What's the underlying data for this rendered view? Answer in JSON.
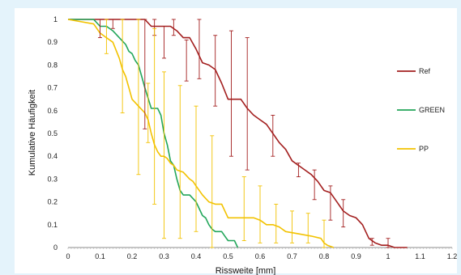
{
  "colors": {
    "background": "#e4f3fb",
    "plot_area": "#ffffff",
    "axis": "#8c8c8c",
    "ref": "#a31f1f",
    "green": "#22a65a",
    "pp": "#f2c200"
  },
  "chart_data": {
    "type": "line",
    "title": "",
    "xlabel": "Rissweite [mm]",
    "ylabel": "Kumulative Häufigkeit",
    "xlim": [
      0,
      1.2
    ],
    "ylim": [
      0,
      1
    ],
    "x_ticks": [
      "0",
      "0.1",
      "0.2",
      "0.3",
      "0.4",
      "0.5",
      "0.6",
      "0.7",
      "0.8",
      "0.9",
      "1",
      "1.1",
      "1.2"
    ],
    "y_ticks": [
      "0",
      "0.1",
      "0.2",
      "0.3",
      "0.4",
      "0.5",
      "0.6",
      "0.7",
      "0.8",
      "0.9",
      "1"
    ],
    "grid": false,
    "legend_position": "right",
    "series": [
      {
        "name": "Ref",
        "color": "#a31f1f",
        "x": [
          0,
          0.08,
          0.1,
          0.12,
          0.14,
          0.16,
          0.18,
          0.2,
          0.22,
          0.24,
          0.26,
          0.28,
          0.3,
          0.32,
          0.34,
          0.36,
          0.38,
          0.4,
          0.42,
          0.44,
          0.46,
          0.48,
          0.5,
          0.52,
          0.54,
          0.56,
          0.58,
          0.6,
          0.62,
          0.64,
          0.66,
          0.68,
          0.7,
          0.72,
          0.74,
          0.76,
          0.78,
          0.8,
          0.82,
          0.84,
          0.86,
          0.88,
          0.9,
          0.92,
          0.94,
          0.96,
          0.98,
          1.0,
          1.02,
          1.06
        ],
        "y": [
          1,
          1,
          1,
          1,
          1,
          1,
          1,
          1,
          1,
          1,
          0.97,
          0.97,
          0.97,
          0.97,
          0.95,
          0.92,
          0.92,
          0.87,
          0.81,
          0.8,
          0.78,
          0.72,
          0.65,
          0.65,
          0.65,
          0.61,
          0.58,
          0.56,
          0.54,
          0.5,
          0.46,
          0.43,
          0.38,
          0.36,
          0.34,
          0.32,
          0.29,
          0.25,
          0.24,
          0.2,
          0.16,
          0.14,
          0.13,
          0.1,
          0.04,
          0.02,
          0.01,
          0.01,
          0,
          0
        ],
        "error_bars": [
          {
            "x": 0.1,
            "lo": 0.92,
            "hi": 1
          },
          {
            "x": 0.14,
            "lo": 0.96,
            "hi": 1
          },
          {
            "x": 0.24,
            "lo": 0.52,
            "hi": 1
          },
          {
            "x": 0.27,
            "lo": 0.93,
            "hi": 1
          },
          {
            "x": 0.3,
            "lo": 0.83,
            "hi": 0.97
          },
          {
            "x": 0.33,
            "lo": 0.93,
            "hi": 1
          },
          {
            "x": 0.37,
            "lo": 0.73,
            "hi": 0.91
          },
          {
            "x": 0.41,
            "lo": 0.74,
            "hi": 1
          },
          {
            "x": 0.46,
            "lo": 0.62,
            "hi": 0.93
          },
          {
            "x": 0.51,
            "lo": 0.4,
            "hi": 0.95
          },
          {
            "x": 0.56,
            "lo": 0.34,
            "hi": 0.92
          },
          {
            "x": 0.64,
            "lo": 0.4,
            "hi": 0.58
          },
          {
            "x": 0.72,
            "lo": 0.31,
            "hi": 0.37
          },
          {
            "x": 0.77,
            "lo": 0.21,
            "hi": 0.34
          },
          {
            "x": 0.82,
            "lo": 0.12,
            "hi": 0.27
          },
          {
            "x": 0.86,
            "lo": 0.09,
            "hi": 0.21
          },
          {
            "x": 0.95,
            "lo": 0.01,
            "hi": 0.04
          },
          {
            "x": 1.0,
            "lo": 0,
            "hi": 0.04
          }
        ]
      },
      {
        "name": "GREEN",
        "color": "#22a65a",
        "x": [
          0,
          0.08,
          0.1,
          0.12,
          0.14,
          0.16,
          0.18,
          0.19,
          0.2,
          0.21,
          0.22,
          0.23,
          0.24,
          0.26,
          0.28,
          0.29,
          0.3,
          0.31,
          0.32,
          0.33,
          0.34,
          0.35,
          0.36,
          0.38,
          0.4,
          0.41,
          0.42,
          0.43,
          0.44,
          0.45,
          0.46,
          0.48,
          0.49,
          0.5,
          0.51,
          0.52,
          0.53
        ],
        "y": [
          1,
          1,
          0.97,
          0.97,
          0.95,
          0.92,
          0.89,
          0.86,
          0.85,
          0.82,
          0.8,
          0.75,
          0.7,
          0.61,
          0.61,
          0.58,
          0.5,
          0.45,
          0.38,
          0.36,
          0.3,
          0.25,
          0.23,
          0.23,
          0.2,
          0.17,
          0.14,
          0.13,
          0.1,
          0.08,
          0.07,
          0.07,
          0.05,
          0.03,
          0.03,
          0.03,
          0
        ]
      },
      {
        "name": "PP",
        "color": "#f2c200",
        "x": [
          0,
          0.08,
          0.1,
          0.12,
          0.14,
          0.16,
          0.17,
          0.18,
          0.19,
          0.2,
          0.22,
          0.24,
          0.25,
          0.26,
          0.27,
          0.28,
          0.29,
          0.3,
          0.31,
          0.32,
          0.33,
          0.34,
          0.36,
          0.38,
          0.39,
          0.4,
          0.42,
          0.44,
          0.46,
          0.48,
          0.5,
          0.54,
          0.58,
          0.6,
          0.62,
          0.64,
          0.66,
          0.68,
          0.72,
          0.76,
          0.79,
          0.8,
          0.81,
          0.82,
          0.83
        ],
        "y": [
          1,
          0.98,
          0.94,
          0.92,
          0.9,
          0.83,
          0.78,
          0.75,
          0.7,
          0.65,
          0.62,
          0.59,
          0.56,
          0.5,
          0.45,
          0.42,
          0.4,
          0.4,
          0.39,
          0.37,
          0.36,
          0.34,
          0.33,
          0.3,
          0.29,
          0.27,
          0.23,
          0.2,
          0.19,
          0.19,
          0.13,
          0.13,
          0.13,
          0.12,
          0.1,
          0.1,
          0.09,
          0.07,
          0.06,
          0.05,
          0.04,
          0.02,
          0.01,
          0.005,
          0
        ],
        "error_bars": [
          {
            "x": 0.12,
            "lo": 0.85,
            "hi": 1
          },
          {
            "x": 0.17,
            "lo": 0.59,
            "hi": 1
          },
          {
            "x": 0.22,
            "lo": 0.32,
            "hi": 1
          },
          {
            "x": 0.25,
            "lo": 0.46,
            "hi": 0.72
          },
          {
            "x": 0.27,
            "lo": 0.19,
            "hi": 0.96
          },
          {
            "x": 0.3,
            "lo": 0.04,
            "hi": 0.77
          },
          {
            "x": 0.35,
            "lo": 0.04,
            "hi": 0.71
          },
          {
            "x": 0.4,
            "lo": 0.07,
            "hi": 0.62
          },
          {
            "x": 0.45,
            "lo": 0,
            "hi": 0.49
          },
          {
            "x": 0.55,
            "lo": 0.03,
            "hi": 0.31
          },
          {
            "x": 0.6,
            "lo": 0.02,
            "hi": 0.27
          },
          {
            "x": 0.65,
            "lo": 0.02,
            "hi": 0.19
          },
          {
            "x": 0.7,
            "lo": 0.02,
            "hi": 0.16
          },
          {
            "x": 0.75,
            "lo": 0.02,
            "hi": 0.15
          },
          {
            "x": 0.8,
            "lo": 0,
            "hi": 0.12
          }
        ]
      }
    ]
  }
}
